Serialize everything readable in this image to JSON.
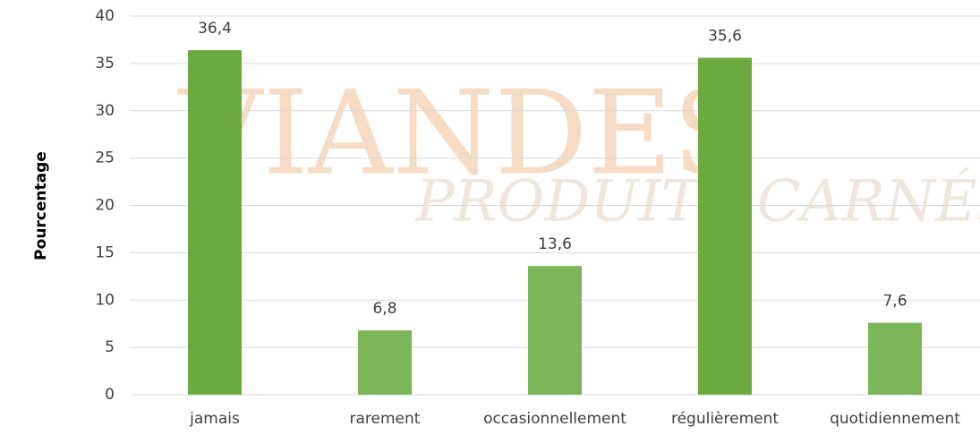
{
  "chart_data": {
    "type": "bar",
    "y_label": "Pourcentage",
    "categories": [
      "jamais",
      "rarement",
      "occasionnellement",
      "régulièrement",
      "quotidiennement"
    ],
    "values": [
      36.4,
      6.8,
      13.6,
      35.6,
      7.6
    ],
    "value_labels": [
      "36,4",
      "6,8",
      "13,6",
      "35,6",
      "7,6"
    ],
    "colors": [
      "#6aaa3f",
      "#7cb65a",
      "#7cb65a",
      "#6aaa3f",
      "#7cb65a"
    ],
    "ylim": [
      0,
      40
    ],
    "yticks": [
      0,
      5,
      10,
      15,
      20,
      25,
      30,
      35,
      40
    ],
    "grid": true,
    "watermark": [
      "VIANDES",
      "PRODUITS CARNÉS"
    ]
  }
}
